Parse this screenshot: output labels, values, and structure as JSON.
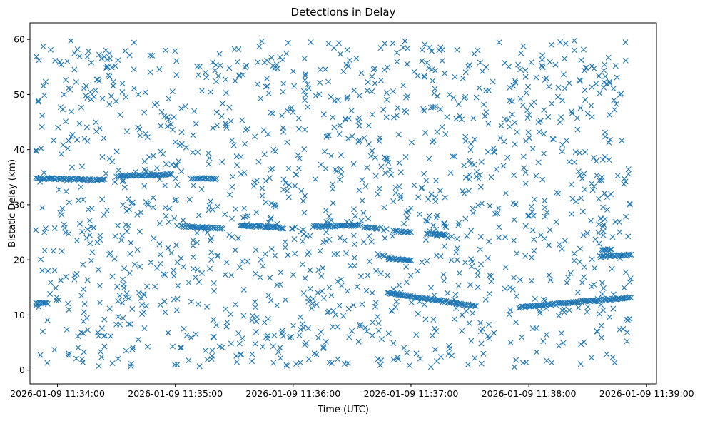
{
  "chart_data": {
    "type": "scatter",
    "title": "Detections in Delay",
    "xlabel": "Time (UTC)",
    "ylabel": "Bistatic Delay (km)",
    "marker": "x",
    "color": "#1f77b4",
    "grid": false,
    "legend": "none",
    "xlim": [
      "2026-01-09 11:33:46",
      "2026-01-09 11:39:05"
    ],
    "ylim": [
      -2.5,
      63
    ],
    "x_ticks": [
      "2026-01-09 11:34:00",
      "2026-01-09 11:35:00",
      "2026-01-09 11:36:00",
      "2026-01-09 11:37:00",
      "2026-01-09 11:38:00",
      "2026-01-09 11:39:00"
    ],
    "y_ticks": [
      0,
      10,
      20,
      30,
      40,
      50,
      60
    ],
    "tracks": [
      {
        "x_start": "2026-01-09 11:33:49",
        "x_end": "2026-01-09 11:34:24",
        "y_start": 34.8,
        "y_end": 34.5
      },
      {
        "x_start": "2026-01-09 11:34:30",
        "x_end": "2026-01-09 11:34:58",
        "y_start": 35.2,
        "y_end": 35.5
      },
      {
        "x_start": "2026-01-09 11:35:08",
        "x_end": "2026-01-09 11:35:21",
        "y_start": 34.8,
        "y_end": 34.7
      },
      {
        "x_start": "2026-01-09 11:33:49",
        "x_end": "2026-01-09 11:33:55",
        "y_start": 12.2,
        "y_end": 12.1
      },
      {
        "x_start": "2026-01-09 11:35:03",
        "x_end": "2026-01-09 11:35:24",
        "y_start": 26.1,
        "y_end": 25.7
      },
      {
        "x_start": "2026-01-09 11:35:33",
        "x_end": "2026-01-09 11:35:55",
        "y_start": 26.2,
        "y_end": 25.8
      },
      {
        "x_start": "2026-01-09 11:36:10",
        "x_end": "2026-01-09 11:36:34",
        "y_start": 26.0,
        "y_end": 26.3
      },
      {
        "x_start": "2026-01-09 11:36:36",
        "x_end": "2026-01-09 11:36:43",
        "y_start": 25.9,
        "y_end": 25.7
      },
      {
        "x_start": "2026-01-09 11:36:48",
        "x_end": "2026-01-09 11:37:00",
        "y_start": 20.2,
        "y_end": 20.0
      },
      {
        "x_start": "2026-01-09 11:36:51",
        "x_end": "2026-01-09 11:37:00",
        "y_start": 25.3,
        "y_end": 25.0
      },
      {
        "x_start": "2026-01-09 11:37:08",
        "x_end": "2026-01-09 11:37:18",
        "y_start": 24.8,
        "y_end": 24.5
      },
      {
        "x_start": "2026-01-09 11:36:48",
        "x_end": "2026-01-09 11:37:33",
        "y_start": 14.0,
        "y_end": 11.6
      },
      {
        "x_start": "2026-01-09 11:37:55",
        "x_end": "2026-01-09 11:38:52",
        "y_start": 11.4,
        "y_end": 13.2
      },
      {
        "x_start": "2026-01-09 11:38:36",
        "x_end": "2026-01-09 11:38:52",
        "y_start": 20.6,
        "y_end": 20.9
      },
      {
        "x_start": "2026-01-09 11:38:37",
        "x_end": "2026-01-09 11:38:42",
        "y_start": 21.8,
        "y_end": 21.8
      }
    ],
    "scatter_points": {
      "x_range": [
        "2026-01-09 11:33:49",
        "2026-01-09 11:38:52"
      ],
      "y_range": [
        0.5,
        60
      ],
      "count": 1500
    }
  }
}
